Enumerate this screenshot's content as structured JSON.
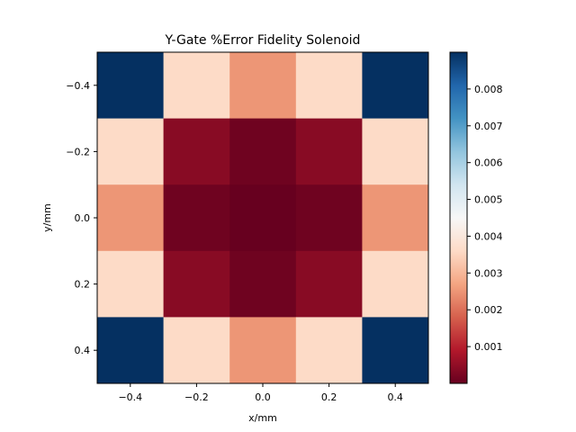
{
  "chart_data": {
    "type": "heatmap",
    "title": "Y-Gate %Error Fidelity Solenoid",
    "xlabel": "x/mm",
    "ylabel": "y/mm",
    "x": [
      -0.4,
      -0.2,
      0.0,
      0.2,
      0.4
    ],
    "y": [
      -0.4,
      -0.2,
      0.0,
      0.2,
      0.4
    ],
    "xlim": [
      -0.5,
      0.5
    ],
    "ylim": [
      0.5,
      -0.5
    ],
    "xticks": [
      "−0.4",
      "−0.2",
      "0.0",
      "0.2",
      "0.4"
    ],
    "yticks": [
      "−0.4",
      "−0.2",
      "0.0",
      "0.2",
      "0.4"
    ],
    "values": [
      [
        0.009,
        0.0036,
        0.0025,
        0.0036,
        0.009
      ],
      [
        0.0036,
        0.0004,
        0.0001,
        0.0004,
        0.0036
      ],
      [
        0.0025,
        0.0001,
        0.0,
        0.0001,
        0.0025
      ],
      [
        0.0036,
        0.0004,
        0.0001,
        0.0004,
        0.0036
      ],
      [
        0.009,
        0.0036,
        0.0025,
        0.0036,
        0.009
      ]
    ],
    "colormap": "RdBu",
    "colorbar": {
      "range": [
        0.0,
        0.009
      ],
      "ticks": [
        0.001,
        0.002,
        0.003,
        0.004,
        0.005,
        0.006,
        0.007,
        0.008
      ],
      "tick_labels": [
        "0.001",
        "0.002",
        "0.003",
        "0.004",
        "0.005",
        "0.006",
        "0.007",
        "0.008"
      ]
    },
    "grid": false
  }
}
